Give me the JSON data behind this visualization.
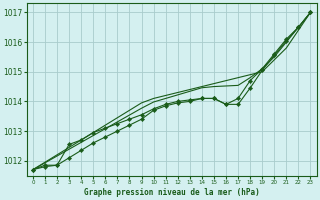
{
  "title": "Graphe pression niveau de la mer (hPa)",
  "xlabel_hours": [
    0,
    1,
    2,
    3,
    4,
    5,
    6,
    7,
    8,
    9,
    10,
    11,
    12,
    13,
    14,
    15,
    16,
    17,
    18,
    19,
    20,
    21,
    22,
    23
  ],
  "line_straight1": [
    1011.7,
    1011.95,
    1012.2,
    1012.45,
    1012.7,
    1012.95,
    1013.2,
    1013.45,
    1013.7,
    1013.95,
    1014.1,
    1014.2,
    1014.3,
    1014.4,
    1014.5,
    1014.6,
    1014.7,
    1014.8,
    1014.9,
    1015.0,
    1015.4,
    1015.8,
    1016.4,
    1017.0
  ],
  "line_straight2": [
    1011.7,
    1011.93,
    1012.16,
    1012.39,
    1012.62,
    1012.85,
    1013.08,
    1013.31,
    1013.54,
    1013.77,
    1013.98,
    1014.1,
    1014.22,
    1014.34,
    1014.46,
    1014.5,
    1014.52,
    1014.54,
    1014.8,
    1015.1,
    1015.5,
    1016.0,
    1016.5,
    1017.0
  ],
  "line_data1": [
    1011.7,
    1011.85,
    1011.85,
    1012.1,
    1012.35,
    1012.6,
    1012.8,
    1013.0,
    1013.2,
    1013.4,
    1013.7,
    1013.85,
    1013.95,
    1014.0,
    1014.1,
    1014.1,
    1013.9,
    1014.1,
    1014.7,
    1015.1,
    1015.6,
    1016.1,
    1016.5,
    1017.0
  ],
  "line_data2": [
    1011.7,
    1011.8,
    1011.85,
    1012.55,
    1012.7,
    1012.95,
    1013.1,
    1013.25,
    1013.4,
    1013.55,
    1013.75,
    1013.9,
    1014.0,
    1014.05,
    1014.1,
    1014.1,
    1013.9,
    1013.9,
    1014.45,
    1015.05,
    1015.55,
    1016.05,
    1016.5,
    1017.0
  ],
  "line_color": "#1a5c1a",
  "bg_color": "#d4f0f0",
  "grid_color": "#a8cccc",
  "axis_color": "#1a5c1a",
  "tick_color": "#1a5c1a",
  "ylim": [
    1011.5,
    1017.3
  ],
  "yticks": [
    1012,
    1013,
    1014,
    1015,
    1016,
    1017
  ]
}
